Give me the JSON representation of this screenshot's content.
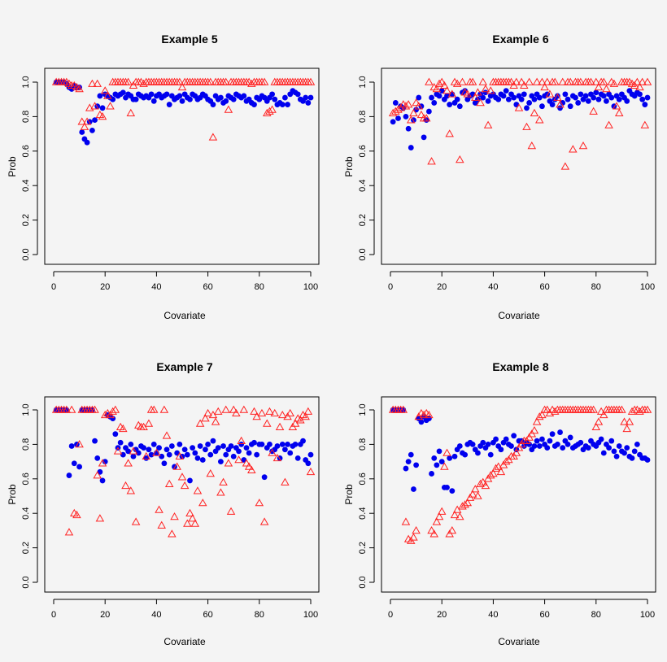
{
  "colors": {
    "series_a": "#0000ee",
    "series_b": "#ff2222",
    "background": "#f4f4f4",
    "axis": "#000000"
  },
  "chart_data": [
    {
      "type": "scatter",
      "title": "Example 5",
      "xlabel": "Covariate",
      "ylabel": "Prob",
      "xlim": [
        0,
        100
      ],
      "ylim": [
        0,
        1
      ],
      "xticks": [
        0,
        20,
        40,
        60,
        80,
        100
      ],
      "yticks": [
        0.0,
        0.2,
        0.4,
        0.6,
        0.8,
        1.0
      ],
      "xtick_labels": [
        "0",
        "20",
        "40",
        "60",
        "80",
        "100"
      ],
      "ytick_labels": [
        "0.0",
        "0.2",
        "0.4",
        "0.6",
        "0.8",
        "1.0"
      ],
      "series": [
        {
          "name": "filled circles",
          "marker": "circle",
          "values": [
            1.0,
            1.0,
            1.0,
            1.0,
            0.99,
            0.97,
            0.96,
            0.98,
            0.97,
            0.97,
            0.71,
            0.67,
            0.65,
            0.77,
            0.72,
            0.78,
            0.86,
            0.92,
            0.85,
            0.93,
            0.92,
            0.91,
            0.9,
            0.93,
            0.92,
            0.93,
            0.94,
            0.91,
            0.93,
            0.92,
            0.9,
            0.9,
            0.93,
            0.92,
            0.91,
            0.92,
            0.91,
            0.93,
            0.89,
            0.92,
            0.93,
            0.91,
            0.92,
            0.93,
            0.87,
            0.92,
            0.9,
            0.91,
            0.92,
            0.89,
            0.93,
            0.91,
            0.9,
            0.93,
            0.92,
            0.9,
            0.91,
            0.93,
            0.92,
            0.9,
            0.89,
            0.87,
            0.92,
            0.9,
            0.91,
            0.88,
            0.89,
            0.92,
            0.91,
            0.9,
            0.93,
            0.92,
            0.91,
            0.92,
            0.89,
            0.9,
            0.88,
            0.87,
            0.91,
            0.9,
            0.92,
            0.91,
            0.89,
            0.91,
            0.93,
            0.9,
            0.87,
            0.88,
            0.87,
            0.91,
            0.87,
            0.93,
            0.95,
            0.94,
            0.93,
            0.9,
            0.89,
            0.91,
            0.88,
            0.91
          ]
        },
        {
          "name": "open triangles",
          "marker": "triangle",
          "values": [
            1.0,
            1.0,
            1.0,
            1.0,
            1.0,
            0.99,
            0.98,
            0.98,
            0.97,
            0.96,
            0.77,
            0.74,
            0.77,
            0.85,
            0.99,
            0.86,
            0.99,
            0.81,
            0.8,
            0.95,
            0.92,
            0.86,
            1.0,
            1.0,
            1.0,
            1.0,
            1.0,
            1.0,
            1.0,
            0.82,
            0.98,
            1.0,
            1.0,
            1.0,
            0.99,
            1.0,
            1.0,
            1.0,
            1.0,
            1.0,
            1.0,
            1.0,
            1.0,
            1.0,
            1.0,
            1.0,
            1.0,
            1.0,
            1.0,
            0.97,
            1.0,
            1.0,
            1.0,
            1.0,
            1.0,
            1.0,
            1.0,
            1.0,
            1.0,
            1.0,
            1.0,
            0.68,
            1.0,
            1.0,
            1.0,
            1.0,
            1.0,
            0.84,
            1.0,
            1.0,
            1.0,
            1.0,
            1.0,
            1.0,
            1.0,
            1.0,
            0.99,
            1.0,
            1.0,
            1.0,
            1.0,
            1.0,
            0.82,
            0.83,
            0.84,
            1.0,
            1.0,
            1.0,
            1.0,
            1.0,
            1.0,
            1.0,
            1.0,
            1.0,
            1.0,
            1.0,
            1.0,
            1.0,
            1.0,
            1.0
          ]
        }
      ]
    },
    {
      "type": "scatter",
      "title": "Example 6",
      "xlabel": "Covariate",
      "ylabel": "Prob",
      "xlim": [
        0,
        100
      ],
      "ylim": [
        0,
        1
      ],
      "xticks": [
        0,
        20,
        40,
        60,
        80,
        100
      ],
      "yticks": [
        0.0,
        0.2,
        0.4,
        0.6,
        0.8,
        1.0
      ],
      "xtick_labels": [
        "0",
        "20",
        "40",
        "60",
        "80",
        "100"
      ],
      "ytick_labels": [
        "0.0",
        "0.2",
        "0.4",
        "0.6",
        "0.8",
        "1.0"
      ],
      "series": [
        {
          "name": "filled circles",
          "marker": "circle",
          "values": [
            0.77,
            0.88,
            0.79,
            0.86,
            0.85,
            0.8,
            0.73,
            0.62,
            0.78,
            0.84,
            0.91,
            0.86,
            0.68,
            0.78,
            0.83,
            0.91,
            0.88,
            0.93,
            0.92,
            0.95,
            0.9,
            0.92,
            0.87,
            0.93,
            0.88,
            0.9,
            0.86,
            0.94,
            0.95,
            0.9,
            0.92,
            0.93,
            0.88,
            0.9,
            0.93,
            0.91,
            0.94,
            0.89,
            0.92,
            0.93,
            0.91,
            0.9,
            0.93,
            0.92,
            0.95,
            0.9,
            0.93,
            0.91,
            0.87,
            0.92,
            0.9,
            0.93,
            0.85,
            0.88,
            0.92,
            0.9,
            0.93,
            0.91,
            0.86,
            0.92,
            0.93,
            0.89,
            0.87,
            0.9,
            0.92,
            0.85,
            0.88,
            0.93,
            0.9,
            0.86,
            0.92,
            0.91,
            0.88,
            0.93,
            0.9,
            0.92,
            0.89,
            0.93,
            0.91,
            0.94,
            0.9,
            0.93,
            0.92,
            0.89,
            0.93,
            0.91,
            0.86,
            0.92,
            0.9,
            0.93,
            0.91,
            0.89,
            0.95,
            0.93,
            0.92,
            0.94,
            0.93,
            0.9,
            0.87,
            0.91
          ]
        },
        {
          "name": "open triangles",
          "marker": "triangle",
          "values": [
            0.82,
            0.83,
            0.84,
            0.85,
            0.87,
            0.86,
            0.87,
            0.78,
            0.82,
            0.88,
            0.86,
            0.81,
            0.79,
            0.79,
            1.0,
            0.54,
            0.97,
            0.96,
            0.99,
            1.0,
            0.98,
            0.95,
            0.7,
            0.93,
            1.0,
            0.99,
            0.55,
            1.0,
            0.94,
            0.93,
            1.0,
            1.0,
            0.91,
            0.94,
            0.88,
            1.0,
            0.96,
            0.75,
            0.95,
            1.0,
            1.0,
            1.0,
            1.0,
            1.0,
            1.0,
            1.0,
            1.0,
            0.98,
            1.0,
            0.85,
            1.0,
            0.98,
            0.74,
            1.0,
            0.63,
            0.82,
            1.0,
            0.78,
            1.0,
            0.97,
            1.0,
            0.93,
            1.0,
            1.0,
            0.91,
            0.87,
            1.0,
            0.51,
            1.0,
            1.0,
            0.61,
            1.0,
            1.0,
            1.0,
            0.63,
            1.0,
            1.0,
            1.0,
            0.83,
            1.0,
            0.97,
            1.0,
            1.0,
            0.96,
            0.75,
            1.0,
            0.99,
            0.86,
            0.82,
            1.0,
            1.0,
            1.0,
            1.0,
            0.99,
            0.98,
            1.0,
            0.97,
            1.0,
            0.75,
            1.0
          ]
        }
      ]
    },
    {
      "type": "scatter",
      "title": "Example 7",
      "xlabel": "Covariate",
      "ylabel": "Prob",
      "xlim": [
        0,
        100
      ],
      "ylim": [
        0,
        1
      ],
      "xticks": [
        0,
        20,
        40,
        60,
        80,
        100
      ],
      "yticks": [
        0.0,
        0.2,
        0.4,
        0.6,
        0.8,
        1.0
      ],
      "xtick_labels": [
        "0",
        "20",
        "40",
        "60",
        "80",
        "100"
      ],
      "ytick_labels": [
        "0.0",
        "0.2",
        "0.4",
        "0.6",
        "0.8",
        "1.0"
      ],
      "series": [
        {
          "name": "filled circles",
          "marker": "circle",
          "values": [
            1.0,
            1.0,
            1.0,
            1.0,
            1.0,
            0.62,
            0.79,
            0.69,
            0.8,
            0.67,
            1.0,
            1.0,
            1.0,
            1.0,
            1.0,
            0.82,
            0.72,
            0.64,
            0.59,
            0.7,
            0.97,
            0.96,
            0.95,
            0.86,
            0.78,
            0.81,
            0.74,
            0.78,
            0.76,
            0.8,
            0.73,
            0.77,
            0.75,
            0.79,
            0.78,
            0.72,
            0.77,
            0.74,
            0.8,
            0.75,
            0.78,
            0.73,
            0.69,
            0.77,
            0.74,
            0.79,
            0.67,
            0.75,
            0.8,
            0.73,
            0.77,
            0.74,
            0.59,
            0.78,
            0.75,
            0.72,
            0.79,
            0.71,
            0.77,
            0.8,
            0.74,
            0.82,
            0.76,
            0.78,
            0.7,
            0.79,
            0.74,
            0.77,
            0.79,
            0.73,
            0.78,
            0.76,
            0.8,
            0.71,
            0.78,
            0.75,
            0.8,
            0.81,
            0.74,
            0.8,
            0.8,
            0.61,
            0.78,
            0.8,
            0.76,
            0.77,
            0.79,
            0.72,
            0.8,
            0.77,
            0.8,
            0.75,
            0.79,
            0.8,
            0.72,
            0.8,
            0.82,
            0.71,
            0.69,
            0.74
          ]
        },
        {
          "name": "open triangles",
          "marker": "triangle",
          "values": [
            1.0,
            1.0,
            1.0,
            1.0,
            1.0,
            0.29,
            1.0,
            0.4,
            0.39,
            0.8,
            1.0,
            1.0,
            1.0,
            1.0,
            1.0,
            1.0,
            0.62,
            0.37,
            0.69,
            0.97,
            0.98,
            0.97,
            0.99,
            1.0,
            0.76,
            0.9,
            0.89,
            0.56,
            0.69,
            0.53,
            0.76,
            0.35,
            0.91,
            0.9,
            0.9,
            0.73,
            0.92,
            1.0,
            1.0,
            0.75,
            0.42,
            0.33,
            1.0,
            0.85,
            0.57,
            0.28,
            0.38,
            0.67,
            0.73,
            0.61,
            0.56,
            0.34,
            0.4,
            0.37,
            0.34,
            0.53,
            0.92,
            0.46,
            0.95,
            0.98,
            0.63,
            0.97,
            0.93,
            0.99,
            0.52,
            0.58,
            1.0,
            0.69,
            0.41,
            1.0,
            0.98,
            0.71,
            0.82,
            1.0,
            0.69,
            0.67,
            0.65,
            0.99,
            0.96,
            0.46,
            0.98,
            0.35,
            0.92,
            0.99,
            0.75,
            0.98,
            0.72,
            0.9,
            0.97,
            0.58,
            0.96,
            0.98,
            0.9,
            0.92,
            0.95,
            0.94,
            0.97,
            0.96,
            0.99,
            0.64
          ]
        }
      ]
    },
    {
      "type": "scatter",
      "title": "Example 8",
      "xlabel": "Covariate",
      "ylabel": "Prob",
      "xlim": [
        0,
        100
      ],
      "ylim": [
        0,
        1
      ],
      "xticks": [
        0,
        20,
        40,
        60,
        80,
        100
      ],
      "yticks": [
        0.0,
        0.2,
        0.4,
        0.6,
        0.8,
        1.0
      ],
      "xtick_labels": [
        "0",
        "20",
        "40",
        "60",
        "80",
        "100"
      ],
      "ytick_labels": [
        "0.0",
        "0.2",
        "0.4",
        "0.6",
        "0.8",
        "1.0"
      ],
      "series": [
        {
          "name": "filled circles",
          "marker": "circle",
          "values": [
            1.0,
            1.0,
            1.0,
            1.0,
            1.0,
            0.66,
            0.7,
            0.74,
            0.54,
            0.68,
            0.95,
            0.93,
            0.96,
            0.94,
            0.95,
            0.63,
            0.72,
            0.68,
            0.76,
            0.7,
            0.55,
            0.55,
            0.72,
            0.53,
            0.73,
            0.77,
            0.79,
            0.75,
            0.74,
            0.8,
            0.81,
            0.8,
            0.77,
            0.75,
            0.79,
            0.81,
            0.78,
            0.8,
            0.74,
            0.81,
            0.83,
            0.79,
            0.77,
            0.81,
            0.83,
            0.8,
            0.79,
            0.85,
            0.77,
            0.82,
            0.82,
            0.79,
            0.81,
            0.8,
            0.77,
            0.79,
            0.82,
            0.79,
            0.83,
            0.8,
            0.78,
            0.82,
            0.86,
            0.79,
            0.8,
            0.87,
            0.78,
            0.82,
            0.8,
            0.84,
            0.78,
            0.79,
            0.8,
            0.81,
            0.77,
            0.79,
            0.78,
            0.82,
            0.8,
            0.79,
            0.81,
            0.83,
            0.75,
            0.8,
            0.78,
            0.82,
            0.76,
            0.73,
            0.79,
            0.76,
            0.75,
            0.78,
            0.73,
            0.72,
            0.76,
            0.8,
            0.74,
            0.72,
            0.72,
            0.71
          ]
        },
        {
          "name": "open triangles",
          "marker": "triangle",
          "values": [
            1.0,
            1.0,
            1.0,
            1.0,
            1.0,
            0.35,
            0.25,
            0.24,
            0.26,
            0.3,
            0.96,
            0.98,
            0.97,
            0.98,
            0.97,
            0.3,
            0.28,
            0.35,
            0.38,
            0.41,
            0.67,
            0.75,
            0.28,
            0.3,
            0.39,
            0.42,
            0.38,
            0.44,
            0.45,
            0.46,
            0.49,
            0.51,
            0.54,
            0.5,
            0.57,
            0.58,
            0.56,
            0.6,
            0.62,
            0.63,
            0.66,
            0.67,
            0.64,
            0.68,
            0.7,
            0.71,
            0.73,
            0.73,
            0.75,
            0.78,
            0.8,
            0.82,
            0.82,
            0.84,
            0.86,
            0.88,
            0.93,
            0.96,
            0.97,
            1.0,
            1.0,
            0.98,
            1.0,
            0.99,
            1.0,
            1.0,
            1.0,
            1.0,
            1.0,
            1.0,
            1.0,
            1.0,
            1.0,
            1.0,
            1.0,
            1.0,
            1.0,
            1.0,
            1.0,
            0.9,
            0.93,
            0.99,
            0.97,
            1.0,
            1.0,
            1.0,
            1.0,
            1.0,
            1.0,
            1.0,
            0.93,
            0.89,
            0.93,
            0.99,
            1.0,
            1.0,
            0.99,
            1.0,
            1.0,
            1.0
          ]
        }
      ]
    }
  ]
}
